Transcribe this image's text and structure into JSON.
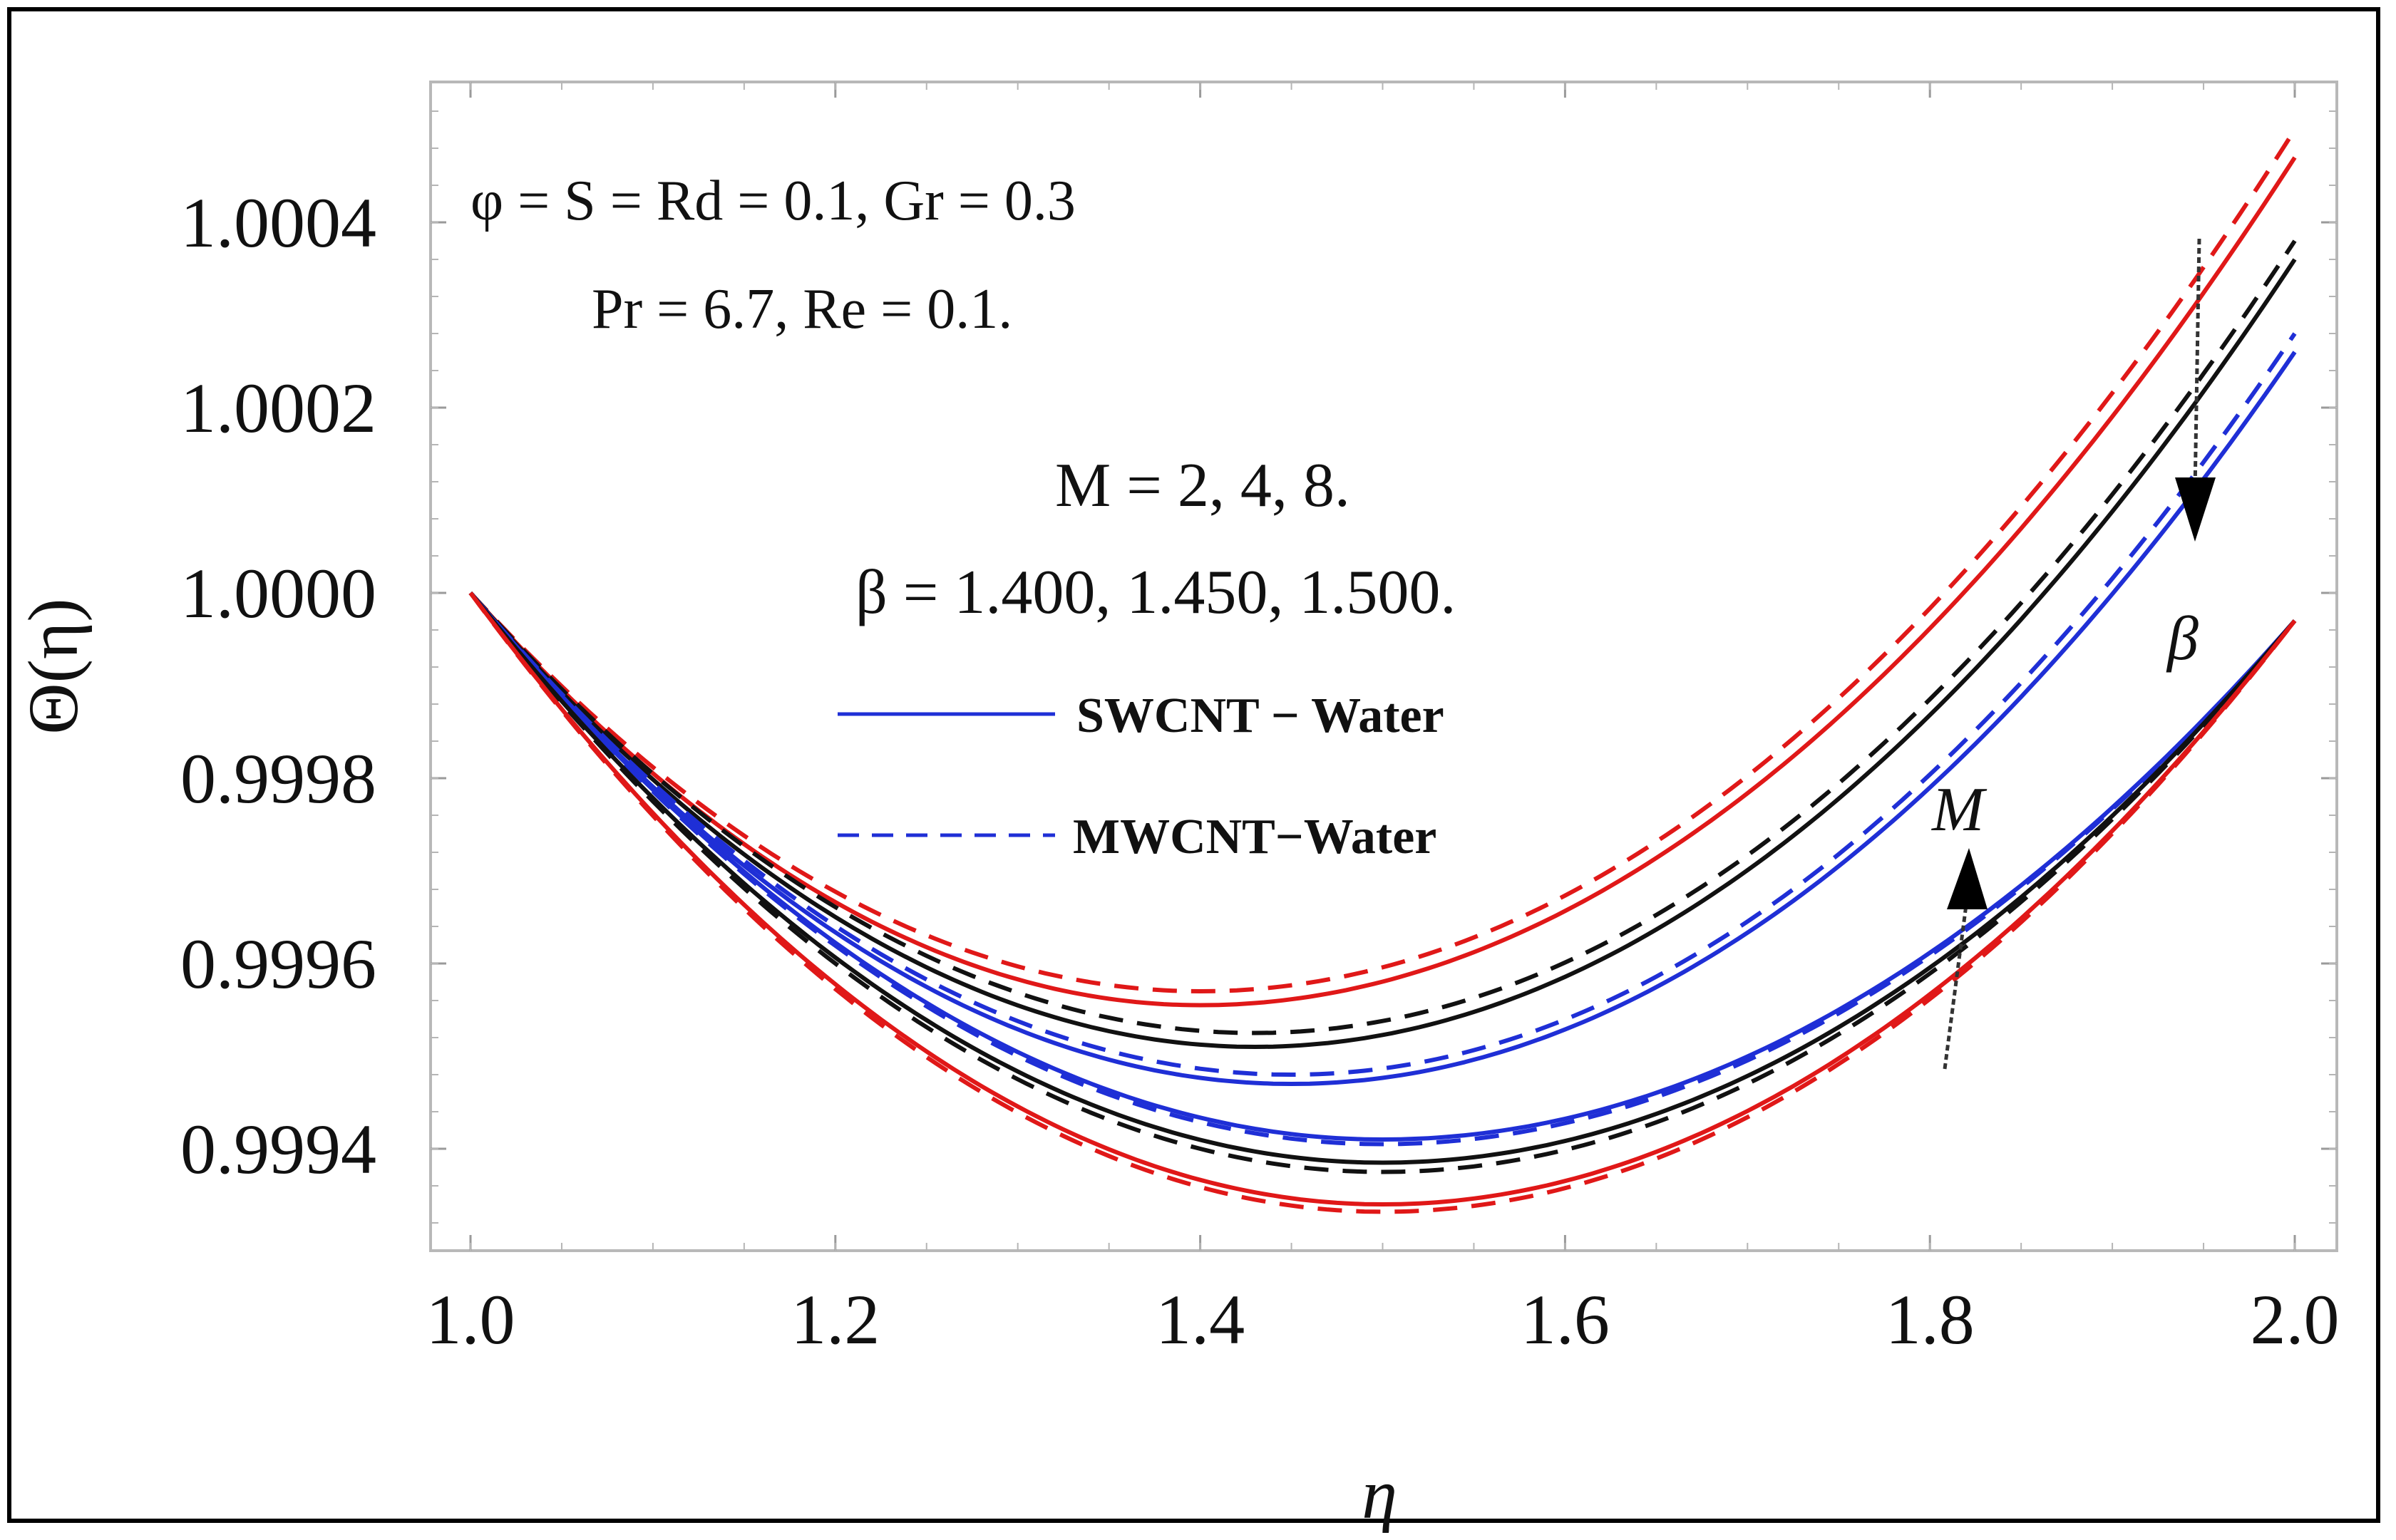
{
  "chart_data": {
    "type": "line",
    "title": "",
    "xlabel": "η",
    "ylabel": "Θ(η)",
    "xlim": [
      1.0,
      2.0
    ],
    "ylim": [
      0.99927,
      1.00056
    ],
    "xticks": [
      1.0,
      1.2,
      1.4,
      1.6,
      1.8,
      2.0
    ],
    "xtick_labels": [
      "1.0",
      "1.2",
      "1.4",
      "1.6",
      "1.8",
      "2.0"
    ],
    "yticks": [
      0.9994,
      0.9996,
      0.9998,
      1.0,
      1.0002,
      1.0004
    ],
    "ytick_labels": [
      "0.9994",
      "0.9996",
      "0.9998",
      "1.0000",
      "1.0002",
      "1.0004"
    ],
    "annotations": {
      "params_line1": "φ = S = Rd = 0.1, Gr = 0.3",
      "params_line2": "Pr = 6.7, Re = 0.1.",
      "m_values": "M = 2, 4,  8.",
      "beta_values": "β = 1.400, 1.450, 1.500.",
      "beta_arrow_label": "β",
      "m_arrow_label": "M"
    },
    "legend": [
      {
        "label": "SWCNT − Water",
        "style": "solid",
        "color": "#1f2fd6"
      },
      {
        "label": "MWCNT−Water",
        "style": "dashed",
        "color": "#1f2fd6"
      }
    ],
    "series": [
      {
        "name": "β = 1.400 SWCNT",
        "color": "#e01818",
        "style": "solid",
        "x": [
          1.0,
          1.4,
          2.0
        ],
        "y": [
          1.0,
          0.999555,
          1.00047
        ]
      },
      {
        "name": "β = 1.400 MWCNT",
        "color": "#e01818",
        "style": "dashed",
        "x": [
          1.0,
          1.4,
          2.0
        ],
        "y": [
          1.0,
          0.99957,
          1.0005
        ]
      },
      {
        "name": "β = 1.450 SWCNT",
        "color": "#111111",
        "style": "solid",
        "x": [
          1.0,
          1.43,
          2.0
        ],
        "y": [
          1.0,
          0.99951,
          1.00036
        ]
      },
      {
        "name": "β = 1.450 MWCNT",
        "color": "#111111",
        "style": "dashed",
        "x": [
          1.0,
          1.43,
          2.0
        ],
        "y": [
          1.0,
          0.999525,
          1.00038
        ]
      },
      {
        "name": "β = 1.500 SWCNT",
        "color": "#1f2fd6",
        "style": "solid",
        "x": [
          1.0,
          1.45,
          2.0
        ],
        "y": [
          1.0,
          0.99947,
          1.00026
        ]
      },
      {
        "name": "β = 1.500 MWCNT",
        "color": "#1f2fd6",
        "style": "dashed",
        "x": [
          1.0,
          1.45,
          2.0
        ],
        "y": [
          1.0,
          0.99948,
          1.00028
        ]
      },
      {
        "name": "M = 8 SWCNT",
        "color": "#1f2fd6",
        "style": "solid",
        "x": [
          1.0,
          1.5,
          2.0
        ],
        "y": [
          1.0,
          0.99941,
          0.99997
        ]
      },
      {
        "name": "M = 8 MWCNT",
        "color": "#1f2fd6",
        "style": "dashed",
        "x": [
          1.0,
          1.5,
          2.0
        ],
        "y": [
          1.0,
          0.999405,
          0.99997
        ]
      },
      {
        "name": "M = 4 SWCNT",
        "color": "#111111",
        "style": "solid",
        "x": [
          1.0,
          1.5,
          2.0
        ],
        "y": [
          1.0,
          0.999385,
          0.99997
        ]
      },
      {
        "name": "M = 4 MWCNT",
        "color": "#111111",
        "style": "dashed",
        "x": [
          1.0,
          1.5,
          2.0
        ],
        "y": [
          1.0,
          0.999375,
          0.99997
        ]
      },
      {
        "name": "M = 2 SWCNT",
        "color": "#e01818",
        "style": "solid",
        "x": [
          1.0,
          1.5,
          2.0
        ],
        "y": [
          1.0,
          0.99934,
          0.99997
        ]
      },
      {
        "name": "M = 2 MWCNT",
        "color": "#e01818",
        "style": "dashed",
        "x": [
          1.0,
          1.5,
          2.0
        ],
        "y": [
          1.0,
          0.999332,
          0.99997
        ]
      }
    ]
  }
}
